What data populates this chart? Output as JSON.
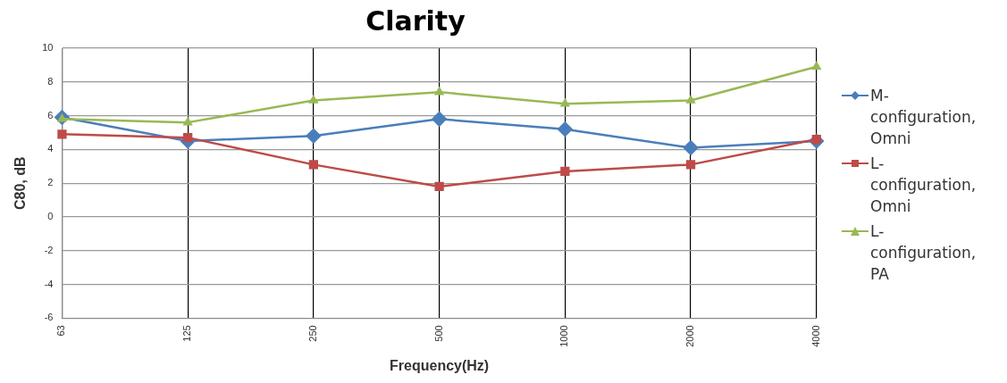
{
  "chart_data": {
    "type": "line",
    "title": "Clarity",
    "xlabel": "Frequency(Hz)",
    "ylabel": "C80, dB",
    "categories": [
      "63",
      "125",
      "250",
      "500",
      "1000",
      "2000",
      "4000"
    ],
    "ylim": [
      -6,
      10
    ],
    "yticks": [
      -6,
      -4,
      -2,
      0,
      2,
      4,
      6,
      8,
      10
    ],
    "grid": true,
    "legend": "right",
    "series": [
      {
        "name": "M-configuration, Omni",
        "color": "#4a7ebb",
        "marker": "diamond",
        "values": [
          5.9,
          4.5,
          4.8,
          5.8,
          5.2,
          4.1,
          4.5
        ]
      },
      {
        "name": "L-configuration, Omni",
        "color": "#be4b48",
        "marker": "square",
        "values": [
          4.9,
          4.7,
          3.1,
          1.8,
          2.7,
          3.1,
          4.6
        ]
      },
      {
        "name": "L-configuration, PA",
        "color": "#98b954",
        "marker": "triangle",
        "values": [
          5.8,
          5.6,
          6.9,
          7.4,
          6.7,
          6.9,
          8.9
        ]
      }
    ]
  }
}
